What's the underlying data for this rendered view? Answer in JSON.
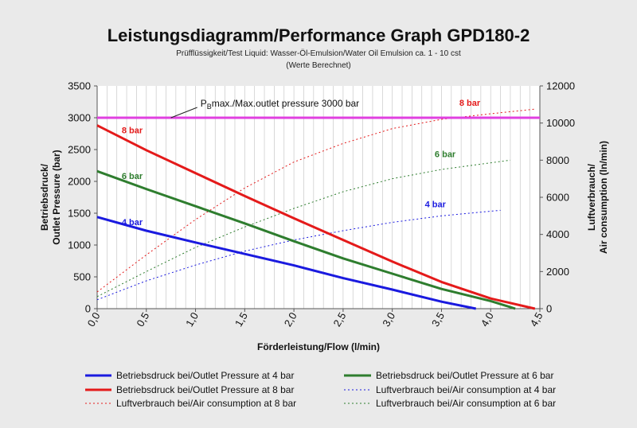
{
  "chart_data": {
    "type": "line",
    "title": "Leistungsdiagramm/Performance Graph GPD180-2",
    "subtitle": "Prüfflüssigkeit/Test Liquid: Wasser-Öl-Emulsion/Water Oil Emulsion ca. 1 - 10 cst",
    "note": "(Werte Berechnet)",
    "xlabel": "Förderleistung/Flow (l/min)",
    "ylabel_line1": "Betriebsdruck/",
    "ylabel_line2": "Outlet Pressure (bar)",
    "y2label_line1": "Luftverbrauch/",
    "y2label_line2": "Air consumption (ln/min)",
    "xlim": [
      0,
      4.5
    ],
    "ylim": [
      0,
      3500
    ],
    "y2lim": [
      0,
      12000
    ],
    "xticks": [
      "0,0",
      "0,5",
      "1,0",
      "1,5",
      "2,0",
      "2,5",
      "3,0",
      "3,5",
      "4,0",
      "4,5"
    ],
    "yticks": [
      "0",
      "500",
      "1000",
      "1500",
      "2000",
      "2500",
      "3000",
      "3500"
    ],
    "y2ticks": [
      "0",
      "2000",
      "4000",
      "6000",
      "8000",
      "10000",
      "12000"
    ],
    "grid": "vertical",
    "max_pressure": {
      "value": 3000,
      "label_sub_prefix": "P",
      "label_sub": "B",
      "label_rest": "max./Max.outlet pressure 3000 bar",
      "color": "#e040e0"
    },
    "pressure_series": [
      {
        "name": "Betriebsdruck bei/Outlet Pressure at 4 bar",
        "label": "4 bar",
        "color": "#1a1adf",
        "x": [
          0,
          0.5,
          1.0,
          1.5,
          2.0,
          2.5,
          3.0,
          3.5,
          3.85
        ],
        "values": [
          1440,
          1225,
          1040,
          860,
          680,
          480,
          300,
          110,
          0
        ]
      },
      {
        "name": "Betriebsdruck bei/Outlet Pressure at 6 bar",
        "label": "6 bar",
        "color": "#2e7d2e",
        "x": [
          0,
          0.5,
          1.0,
          1.5,
          2.0,
          2.5,
          3.0,
          3.5,
          4.0,
          4.25
        ],
        "values": [
          2160,
          1880,
          1610,
          1340,
          1060,
          790,
          550,
          310,
          120,
          0
        ]
      },
      {
        "name": "Betriebsdruck bei/Outlet Pressure at 8 bar",
        "label": "8 bar",
        "color": "#e41a1a",
        "x": [
          0,
          0.5,
          1.0,
          1.5,
          2.0,
          2.5,
          3.0,
          3.5,
          4.0,
          4.45
        ],
        "values": [
          2880,
          2490,
          2130,
          1770,
          1420,
          1080,
          740,
          420,
          160,
          0
        ]
      }
    ],
    "air_series": [
      {
        "name": "Luftverbrauch bei/Air consumption at 4 bar",
        "label": "4 bar",
        "color": "#1a1adf",
        "x": [
          0,
          0.5,
          1.0,
          1.5,
          2.0,
          2.5,
          3.0,
          3.5,
          4.1
        ],
        "values": [
          480,
          1500,
          2350,
          3100,
          3700,
          4200,
          4650,
          5000,
          5300
        ]
      },
      {
        "name": "Luftverbrauch bei/Air consumption at 6 bar",
        "label": "6 bar",
        "color": "#2e7d2e",
        "x": [
          0,
          0.5,
          1.0,
          1.5,
          2.0,
          2.5,
          3.0,
          3.5,
          4.2
        ],
        "values": [
          650,
          2000,
          3300,
          4400,
          5400,
          6300,
          7000,
          7500,
          8000
        ]
      },
      {
        "name": "Luftverbrauch bei/Air consumption at 8 bar",
        "label": "8 bar",
        "color": "#e41a1a",
        "x": [
          0,
          0.5,
          1.0,
          1.5,
          2.0,
          2.5,
          3.0,
          3.5,
          4.0,
          4.45
        ],
        "values": [
          900,
          2900,
          4800,
          6500,
          7900,
          8900,
          9700,
          10200,
          10500,
          10750
        ]
      }
    ],
    "legend": {
      "placement": "bottom",
      "entries": [
        {
          "label": "Betriebsdruck bei/Outlet Pressure at 4 bar",
          "color": "#1a1adf",
          "style": "solid"
        },
        {
          "label": "Betriebsdruck bei/Outlet Pressure at 6 bar",
          "color": "#2e7d2e",
          "style": "solid"
        },
        {
          "label": "Betriebsdruck bei/Outlet Pressure at 8 bar",
          "color": "#e41a1a",
          "style": "solid"
        },
        {
          "label": "Luftverbrauch bei/Air consumption at 4 bar",
          "color": "#1a1adf",
          "style": "dotted"
        },
        {
          "label": "Luftverbrauch bei/Air consumption at 6 bar",
          "color": "#2e7d2e",
          "style": "dotted"
        },
        {
          "label": "Luftverbrauch bei/Air consumption at 8 bar",
          "color": "#e41a1a",
          "style": "dotted"
        }
      ]
    }
  }
}
